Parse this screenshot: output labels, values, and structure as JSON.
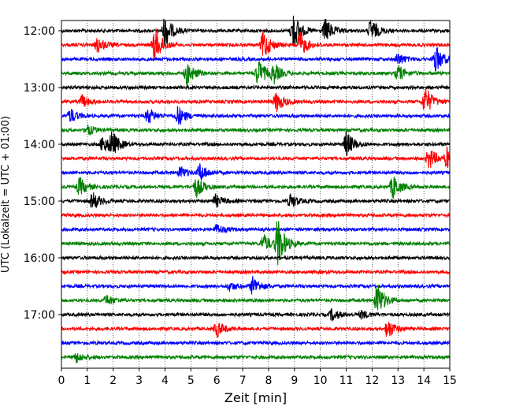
{
  "chart_data": {
    "type": "line",
    "title": "",
    "xlabel": "Zeit  [min]",
    "ylabel": "UTC (Lokalzeit = UTC + 01:00)",
    "xlim": [
      0,
      15
    ],
    "x_ticks": [
      "0",
      "1",
      "2",
      "3",
      "4",
      "5",
      "6",
      "7",
      "8",
      "9",
      "10",
      "11",
      "12",
      "13",
      "14",
      "15"
    ],
    "y_tick_labels": [
      "12:00",
      "13:00",
      "14:00",
      "15:00",
      "16:00",
      "17:00"
    ],
    "y_tick_times": [
      "12:00",
      "13:00",
      "14:00",
      "15:00",
      "16:00",
      "17:00"
    ],
    "grid": {
      "vertical_dotted": true
    },
    "colors_cycle": [
      "#000000",
      "#ff0000",
      "#0000ff",
      "#008000"
    ],
    "start_time": "12:00",
    "minutes_per_row": 15,
    "traces": [
      {
        "start": "12:00",
        "color": "#000000",
        "events": [
          {
            "t": 4.0,
            "amp": 1.6
          },
          {
            "t": 8.95,
            "amp": 1.8
          },
          {
            "t": 10.2,
            "amp": 1.2
          },
          {
            "t": 11.95,
            "amp": 1.2
          }
        ]
      },
      {
        "start": "12:15",
        "color": "#ff0000",
        "events": [
          {
            "t": 1.4,
            "amp": 0.8
          },
          {
            "t": 3.6,
            "amp": 1.8
          },
          {
            "t": 7.8,
            "amp": 1.5
          },
          {
            "t": 9.2,
            "amp": 1.3
          }
        ]
      },
      {
        "start": "12:30",
        "color": "#0000ff",
        "events": [
          {
            "t": 13.0,
            "amp": 0.6
          },
          {
            "t": 14.45,
            "amp": 1.4
          }
        ]
      },
      {
        "start": "12:45",
        "color": "#008000",
        "events": [
          {
            "t": 4.85,
            "amp": 1.2
          },
          {
            "t": 7.6,
            "amp": 1.4
          },
          {
            "t": 8.2,
            "amp": 0.9
          },
          {
            "t": 13.0,
            "amp": 0.8
          }
        ]
      },
      {
        "start": "13:00",
        "color": "#000000",
        "events": []
      },
      {
        "start": "13:15",
        "color": "#ff0000",
        "events": [
          {
            "t": 0.8,
            "amp": 0.6
          },
          {
            "t": 8.3,
            "amp": 1.0
          },
          {
            "t": 14.05,
            "amp": 1.5
          }
        ]
      },
      {
        "start": "13:30",
        "color": "#0000ff",
        "events": [
          {
            "t": 0.35,
            "amp": 0.7
          },
          {
            "t": 3.35,
            "amp": 0.8
          },
          {
            "t": 4.5,
            "amp": 1.0
          }
        ]
      },
      {
        "start": "13:45",
        "color": "#008000",
        "events": [
          {
            "t": 1.0,
            "amp": 0.5
          }
        ]
      },
      {
        "start": "14:00",
        "color": "#000000",
        "events": [
          {
            "t": 1.6,
            "amp": 0.9
          },
          {
            "t": 1.95,
            "amp": 1.1
          },
          {
            "t": 11.0,
            "amp": 1.3
          }
        ]
      },
      {
        "start": "14:15",
        "color": "#ff0000",
        "events": [
          {
            "t": 14.2,
            "amp": 1.1
          },
          {
            "t": 14.9,
            "amp": 1.0
          }
        ]
      },
      {
        "start": "14:30",
        "color": "#0000ff",
        "events": [
          {
            "t": 4.6,
            "amp": 0.6
          },
          {
            "t": 5.35,
            "amp": 0.9
          }
        ]
      },
      {
        "start": "14:45",
        "color": "#008000",
        "events": [
          {
            "t": 0.7,
            "amp": 0.9
          },
          {
            "t": 5.2,
            "amp": 1.0
          },
          {
            "t": 12.8,
            "amp": 1.2
          }
        ]
      },
      {
        "start": "15:00",
        "color": "#000000",
        "events": [
          {
            "t": 1.2,
            "amp": 0.9
          },
          {
            "t": 5.95,
            "amp": 0.6
          },
          {
            "t": 8.85,
            "amp": 0.7
          }
        ]
      },
      {
        "start": "15:15",
        "color": "#ff0000",
        "events": []
      },
      {
        "start": "15:30",
        "color": "#0000ff",
        "events": [
          {
            "t": 6.0,
            "amp": 0.5
          }
        ]
      },
      {
        "start": "15:45",
        "color": "#008000",
        "events": [
          {
            "t": 7.8,
            "amp": 0.9
          },
          {
            "t": 8.35,
            "amp": 2.4
          }
        ]
      },
      {
        "start": "16:00",
        "color": "#000000",
        "events": []
      },
      {
        "start": "16:15",
        "color": "#ff0000",
        "events": []
      },
      {
        "start": "16:30",
        "color": "#0000ff",
        "events": [
          {
            "t": 6.5,
            "amp": 0.4
          },
          {
            "t": 7.4,
            "amp": 1.0
          }
        ]
      },
      {
        "start": "16:45",
        "color": "#008000",
        "events": [
          {
            "t": 1.75,
            "amp": 0.5
          },
          {
            "t": 12.2,
            "amp": 1.7
          }
        ]
      },
      {
        "start": "17:00",
        "color": "#000000",
        "events": [
          {
            "t": 10.45,
            "amp": 0.6
          },
          {
            "t": 11.6,
            "amp": 0.4
          }
        ]
      },
      {
        "start": "17:15",
        "color": "#ff0000",
        "events": [
          {
            "t": 6.0,
            "amp": 0.8
          },
          {
            "t": 12.6,
            "amp": 1.0
          }
        ]
      },
      {
        "start": "17:30",
        "color": "#0000ff",
        "events": []
      },
      {
        "start": "17:45",
        "color": "#008000",
        "events": [
          {
            "t": 0.55,
            "amp": 0.5
          }
        ]
      }
    ]
  }
}
